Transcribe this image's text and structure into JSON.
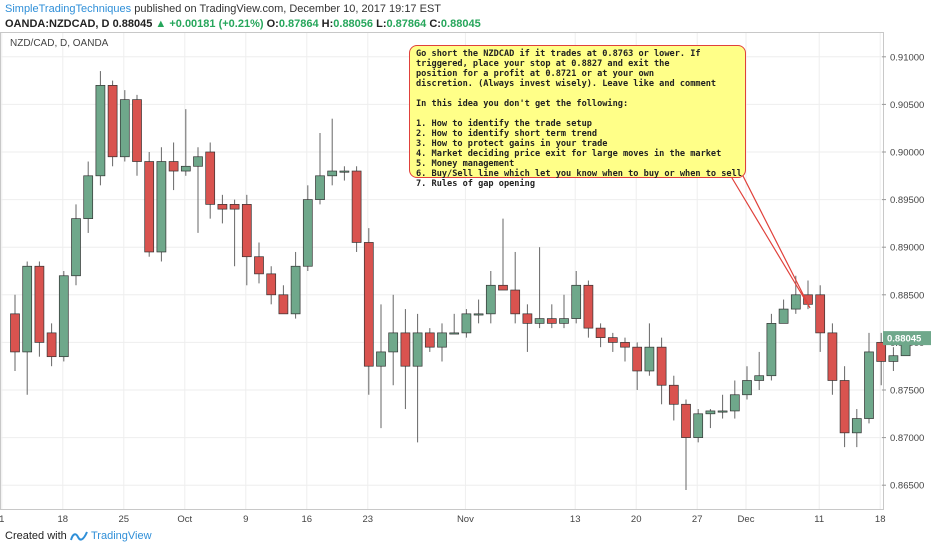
{
  "header": {
    "author": "SimpleTradingTechniques",
    "published": "published on TradingView.com, December 10, 2017 19:17 EST",
    "symbol": "OANDA:NZDCAD, D",
    "price": "0.88045",
    "change_arrow": "▲",
    "change": "+0.00181 (+0.21%)",
    "o_label": "O:",
    "o": "0.87864",
    "h_label": "H:",
    "h": "0.88056",
    "l_label": "L:",
    "l": "0.87864",
    "c_label": "C:",
    "c": "0.88045"
  },
  "chart_label": "NZD/CAD, D, OANDA",
  "note": {
    "lines": [
      "Go short the NZDCAD if it trades at 0.8763 or lower. If",
      "triggered, place your stop at 0.8827 and exit the",
      "position for a profit at 0.8721 or at your own",
      "discretion. (Always invest wisely). Leave like and comment",
      "",
      "In this idea you don't get the following:",
      "",
      "1. How to identify the trade setup",
      "2. How to identify short term trend",
      "3. How to protect gains in your trade",
      "4. Market deciding price exit for large moves in the market",
      "5. Money management",
      "6. Buy/Sell line which let you know when to buy or when to sell",
      "7. Rules of gap opening"
    ]
  },
  "footer": {
    "created_with": "Created with",
    "brand": "TradingView"
  },
  "colors": {
    "up": "#6fa88b",
    "down": "#d9534f",
    "grid": "#eeeeee",
    "axis_text": "#444444",
    "last_price_bg": "#6fa88b"
  },
  "chart_data": {
    "type": "candlestick",
    "symbol": "NZD/CAD",
    "interval": "D",
    "ylim": [
      0.8625,
      0.9125
    ],
    "yticks": [
      0.865,
      0.87,
      0.875,
      0.88,
      0.885,
      0.89,
      0.895,
      0.9,
      0.905,
      0.91
    ],
    "ytick_labels": [
      "0.86500",
      "0.87000",
      "0.87500",
      "0.88000",
      "0.88500",
      "0.89000",
      "0.89500",
      "0.90000",
      "0.90500",
      "0.91000"
    ],
    "last_price": 0.88045,
    "last_price_label": "0.88045",
    "xticks": [
      {
        "index": -1,
        "label": "1"
      },
      {
        "index": 4,
        "label": "18"
      },
      {
        "index": 9,
        "label": "25"
      },
      {
        "index": 14,
        "label": "Oct"
      },
      {
        "index": 19,
        "label": "9"
      },
      {
        "index": 24,
        "label": "16"
      },
      {
        "index": 29,
        "label": "23"
      },
      {
        "index": 37,
        "label": "Nov"
      },
      {
        "index": 46,
        "label": "13"
      },
      {
        "index": 51,
        "label": "20"
      },
      {
        "index": 56,
        "label": "27"
      },
      {
        "index": 60,
        "label": "Dec"
      },
      {
        "index": 66,
        "label": "11"
      },
      {
        "index": 71,
        "label": "18"
      }
    ],
    "candles": [
      [
        0.883,
        0.879,
        0.885,
        0.877
      ],
      [
        0.879,
        0.888,
        0.8885,
        0.8745
      ],
      [
        0.888,
        0.88,
        0.8885,
        0.8785
      ],
      [
        0.881,
        0.8785,
        0.882,
        0.8775
      ],
      [
        0.8785,
        0.887,
        0.8875,
        0.878
      ],
      [
        0.887,
        0.893,
        0.8945,
        0.886
      ],
      [
        0.893,
        0.8975,
        0.899,
        0.8915
      ],
      [
        0.8975,
        0.907,
        0.9085,
        0.8965
      ],
      [
        0.907,
        0.8995,
        0.9075,
        0.8985
      ],
      [
        0.8995,
        0.9055,
        0.9065,
        0.899
      ],
      [
        0.9055,
        0.899,
        0.906,
        0.8975
      ],
      [
        0.899,
        0.8895,
        0.9,
        0.889
      ],
      [
        0.8895,
        0.899,
        0.9005,
        0.8885
      ],
      [
        0.899,
        0.898,
        0.901,
        0.896
      ],
      [
        0.898,
        0.8985,
        0.9045,
        0.8975
      ],
      [
        0.8985,
        0.8995,
        0.9005,
        0.8915
      ],
      [
        0.9,
        0.8945,
        0.901,
        0.893
      ],
      [
        0.8945,
        0.894,
        0.8955,
        0.8925
      ],
      [
        0.8945,
        0.894,
        0.895,
        0.888
      ],
      [
        0.8945,
        0.889,
        0.8955,
        0.886
      ],
      [
        0.889,
        0.8872,
        0.8905,
        0.8862
      ],
      [
        0.8872,
        0.885,
        0.888,
        0.884
      ],
      [
        0.885,
        0.883,
        0.886,
        0.883
      ],
      [
        0.883,
        0.888,
        0.8895,
        0.8825
      ],
      [
        0.888,
        0.895,
        0.8965,
        0.8875
      ],
      [
        0.895,
        0.8975,
        0.902,
        0.8945
      ],
      [
        0.8975,
        0.898,
        0.9035,
        0.8965
      ],
      [
        0.898,
        0.898,
        0.8985,
        0.897
      ],
      [
        0.898,
        0.8905,
        0.8985,
        0.8895
      ],
      [
        0.8905,
        0.8775,
        0.892,
        0.8745
      ],
      [
        0.8775,
        0.879,
        0.884,
        0.871
      ],
      [
        0.879,
        0.881,
        0.885,
        0.8755
      ],
      [
        0.881,
        0.8775,
        0.8835,
        0.873
      ],
      [
        0.8775,
        0.881,
        0.883,
        0.8695
      ],
      [
        0.881,
        0.8795,
        0.8815,
        0.879
      ],
      [
        0.8795,
        0.881,
        0.882,
        0.878
      ],
      [
        0.881,
        0.881,
        0.883,
        0.881
      ],
      [
        0.881,
        0.883,
        0.8835,
        0.8805
      ],
      [
        0.883,
        0.883,
        0.8845,
        0.882
      ],
      [
        0.883,
        0.886,
        0.8875,
        0.882
      ],
      [
        0.886,
        0.8855,
        0.893,
        0.8855
      ],
      [
        0.8855,
        0.883,
        0.8895,
        0.882
      ],
      [
        0.883,
        0.882,
        0.884,
        0.879
      ],
      [
        0.882,
        0.8825,
        0.89,
        0.8815
      ],
      [
        0.8825,
        0.882,
        0.884,
        0.8815
      ],
      [
        0.882,
        0.8825,
        0.885,
        0.8815
      ],
      [
        0.8825,
        0.886,
        0.8875,
        0.882
      ],
      [
        0.886,
        0.8815,
        0.8865,
        0.8805
      ],
      [
        0.8815,
        0.8805,
        0.882,
        0.8795
      ],
      [
        0.8805,
        0.88,
        0.881,
        0.879
      ],
      [
        0.88,
        0.8795,
        0.8805,
        0.878
      ],
      [
        0.8795,
        0.877,
        0.88,
        0.875
      ],
      [
        0.877,
        0.8795,
        0.882,
        0.8765
      ],
      [
        0.8795,
        0.8755,
        0.8805,
        0.8735
      ],
      [
        0.8755,
        0.8735,
        0.8765,
        0.8718
      ],
      [
        0.8735,
        0.87,
        0.874,
        0.8645
      ],
      [
        0.87,
        0.8725,
        0.873,
        0.8695
      ],
      [
        0.8725,
        0.8728,
        0.873,
        0.871
      ],
      [
        0.8728,
        0.8728,
        0.8745,
        0.872
      ],
      [
        0.8728,
        0.8745,
        0.876,
        0.872
      ],
      [
        0.8745,
        0.876,
        0.8775,
        0.874
      ],
      [
        0.876,
        0.8765,
        0.879,
        0.875
      ],
      [
        0.8765,
        0.882,
        0.883,
        0.876
      ],
      [
        0.882,
        0.8835,
        0.8845,
        0.8825
      ],
      [
        0.8835,
        0.885,
        0.887,
        0.883
      ],
      [
        0.885,
        0.884,
        0.8865,
        0.8835
      ],
      [
        0.885,
        0.881,
        0.886,
        0.879
      ],
      [
        0.881,
        0.876,
        0.882,
        0.8745
      ],
      [
        0.876,
        0.8705,
        0.8775,
        0.869
      ],
      [
        0.8705,
        0.872,
        0.873,
        0.869
      ],
      [
        0.872,
        0.879,
        0.881,
        0.8715
      ],
      [
        0.88,
        0.878,
        0.881,
        0.8755
      ],
      [
        0.878,
        0.8786,
        0.8795,
        0.877
      ],
      [
        0.8786,
        0.8804,
        0.8806,
        0.8786
      ]
    ]
  }
}
